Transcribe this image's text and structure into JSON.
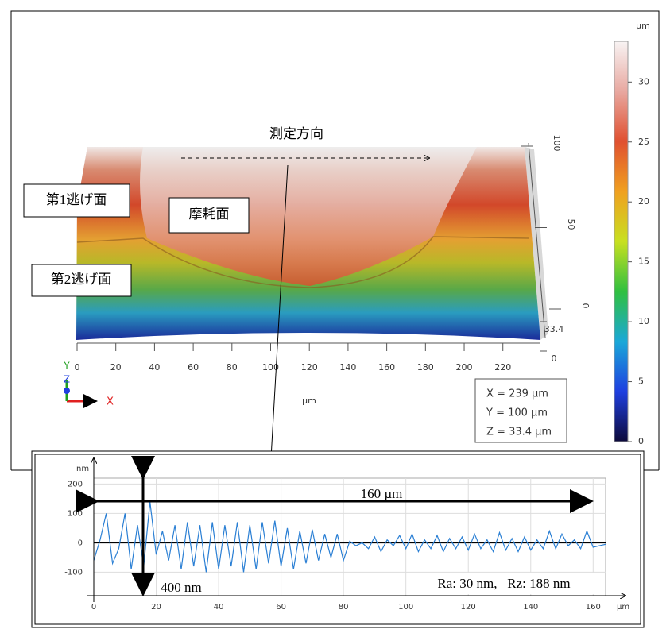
{
  "chart_data": [
    {
      "type": "surface",
      "x_label": "µm",
      "xlim": [
        0,
        239
      ],
      "xticks": [
        0,
        20,
        40,
        60,
        80,
        100,
        120,
        140,
        160,
        180,
        200,
        220
      ],
      "ylim": [
        0,
        100
      ],
      "yticks": [
        0,
        50,
        100
      ],
      "zlim": [
        0,
        33.4
      ],
      "zticks": [
        0,
        33.4
      ],
      "axis_names": [
        "X",
        "Y",
        "Z"
      ],
      "annotations": [
        "測定方向",
        "第1逃げ面",
        "摩耗面",
        "第2逃げ面"
      ],
      "readout": [
        "X = 239 µm",
        "Y = 100 µm",
        "Z = 33.4 µm"
      ],
      "colorbar": {
        "label": "µm",
        "lim": [
          0,
          33.4
        ],
        "ticks": [
          0,
          5,
          10,
          15,
          20,
          25,
          30
        ],
        "colors": [
          "#0d0a3a",
          "#1f3fe0",
          "#1aa8d8",
          "#30c040",
          "#c8e020",
          "#f0a020",
          "#e05030",
          "#e8a8a0",
          "#f8f4f4"
        ]
      }
    },
    {
      "type": "line",
      "x_label": "µm",
      "y_label": "nm",
      "color": "#2a7fd4",
      "grid": true,
      "xlim": [
        0,
        164
      ],
      "xticks": [
        0,
        20,
        40,
        60,
        80,
        100,
        120,
        140,
        160
      ],
      "ylim": [
        -180,
        220
      ],
      "yticks": [
        -100,
        0,
        100,
        200
      ],
      "annotations": [
        "160 µm",
        "400 nm",
        "Ra: 30 nm,   Rz: 188 nm"
      ],
      "x": [
        0,
        2,
        4,
        6,
        8,
        10,
        12,
        14,
        16,
        18,
        20,
        22,
        24,
        26,
        28,
        30,
        32,
        34,
        36,
        38,
        40,
        42,
        44,
        46,
        48,
        50,
        52,
        54,
        56,
        58,
        60,
        62,
        64,
        66,
        68,
        70,
        72,
        74,
        76,
        78,
        80,
        82,
        84,
        86,
        88,
        90,
        92,
        94,
        96,
        98,
        100,
        102,
        104,
        106,
        108,
        110,
        112,
        114,
        116,
        118,
        120,
        122,
        124,
        126,
        128,
        130,
        132,
        134,
        136,
        138,
        140,
        142,
        144,
        146,
        148,
        150,
        152,
        154,
        156,
        158,
        160,
        162,
        164
      ],
      "values": [
        -60,
        10,
        100,
        -70,
        -20,
        100,
        -90,
        60,
        -80,
        140,
        -40,
        40,
        -60,
        60,
        -90,
        70,
        -80,
        60,
        -100,
        70,
        -90,
        60,
        -80,
        70,
        -100,
        60,
        -90,
        70,
        -70,
        75,
        -80,
        50,
        -90,
        40,
        -70,
        45,
        -60,
        30,
        -50,
        30,
        -60,
        5,
        -10,
        0,
        -20,
        20,
        -30,
        10,
        -10,
        25,
        -20,
        30,
        -30,
        10,
        -20,
        25,
        -30,
        15,
        -20,
        20,
        -25,
        30,
        -20,
        10,
        -30,
        35,
        -25,
        15,
        -30,
        20,
        -25,
        10,
        -20,
        40,
        -20,
        30,
        -10,
        10,
        -20,
        40,
        -15,
        -10,
        -5
      ]
    }
  ]
}
